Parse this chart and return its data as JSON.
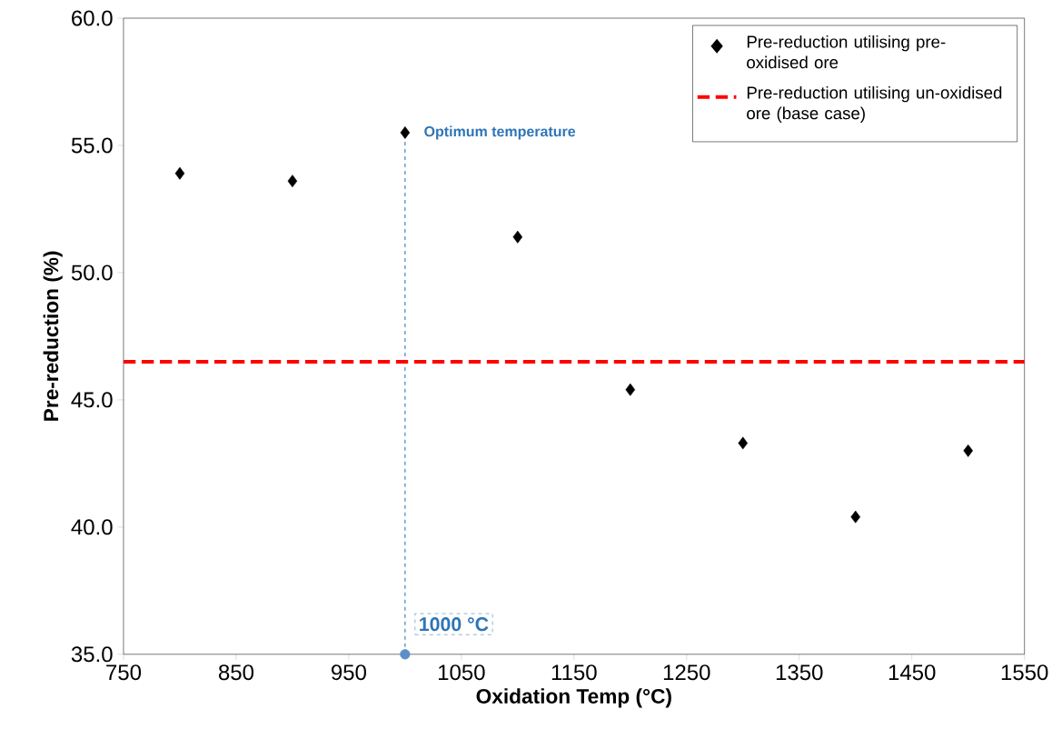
{
  "chart_data": {
    "type": "scatter",
    "xlabel": "Oxidation Temp (°C)",
    "ylabel": "Pre-reduction (%)",
    "x": [
      800,
      900,
      1000,
      1100,
      1200,
      1300,
      1400,
      1500
    ],
    "series": [
      {
        "name": "Pre-reduction utilising pre-oxidised ore",
        "marker": "diamond",
        "color": "#000000",
        "values": [
          53.9,
          53.6,
          55.5,
          51.4,
          45.4,
          43.3,
          40.4,
          43.0
        ]
      },
      {
        "name": "Pre-reduction utilising un-oxidised ore (base case)",
        "type": "line",
        "line_style": "dashed",
        "color": "#ff0000",
        "x": [
          750,
          1550
        ],
        "values": [
          46.5,
          46.5
        ]
      },
      {
        "type": "scatter",
        "marker": "circle",
        "color": "#5b8fc9",
        "x": [
          1000
        ],
        "values": [
          35
        ]
      }
    ],
    "xlim": [
      750,
      1550
    ],
    "ylim": [
      35,
      60
    ],
    "xticks": [
      750,
      850,
      950,
      1050,
      1150,
      1250,
      1350,
      1450,
      1550
    ],
    "yticks": [
      {
        "value": 35,
        "label": "35.0"
      },
      {
        "value": 40,
        "label": "40.0"
      },
      {
        "value": 45,
        "label": "45.0"
      },
      {
        "value": 50,
        "label": "50.0"
      },
      {
        "value": 55,
        "label": "55.0"
      },
      {
        "value": 60,
        "label": "60.0"
      }
    ],
    "ref_lines": [
      {
        "axis": "x",
        "value": 1000,
        "label": "1000 °C",
        "color": "#2e75b6",
        "line_style": "dashed"
      }
    ],
    "annotations": [
      {
        "text": "Optimum temperature",
        "x": 1000,
        "y": 55.5
      }
    ],
    "grid": false,
    "legend": "top right"
  }
}
